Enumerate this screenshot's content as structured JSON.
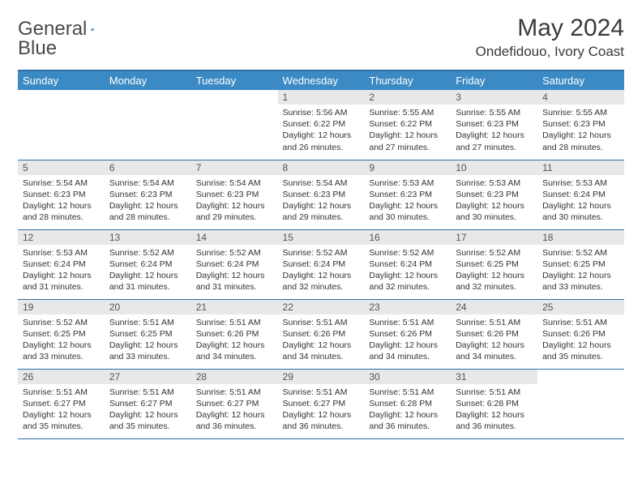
{
  "logo": {
    "text1": "General",
    "text2": "Blue",
    "icon_color": "#2f6fa8"
  },
  "title": "May 2024",
  "subtitle": "Ondefidouo, Ivory Coast",
  "colors": {
    "header_bg": "#3b8ac4",
    "header_text": "#ffffff",
    "rule": "#2f6fa8",
    "daybar_bg": "#e8e8e8",
    "body_text": "#333333"
  },
  "day_labels": [
    "Sunday",
    "Monday",
    "Tuesday",
    "Wednesday",
    "Thursday",
    "Friday",
    "Saturday"
  ],
  "weeks": [
    [
      null,
      null,
      null,
      {
        "n": "1",
        "sr": "5:56 AM",
        "ss": "6:22 PM",
        "dl": "12 hours and 26 minutes."
      },
      {
        "n": "2",
        "sr": "5:55 AM",
        "ss": "6:22 PM",
        "dl": "12 hours and 27 minutes."
      },
      {
        "n": "3",
        "sr": "5:55 AM",
        "ss": "6:23 PM",
        "dl": "12 hours and 27 minutes."
      },
      {
        "n": "4",
        "sr": "5:55 AM",
        "ss": "6:23 PM",
        "dl": "12 hours and 28 minutes."
      }
    ],
    [
      {
        "n": "5",
        "sr": "5:54 AM",
        "ss": "6:23 PM",
        "dl": "12 hours and 28 minutes."
      },
      {
        "n": "6",
        "sr": "5:54 AM",
        "ss": "6:23 PM",
        "dl": "12 hours and 28 minutes."
      },
      {
        "n": "7",
        "sr": "5:54 AM",
        "ss": "6:23 PM",
        "dl": "12 hours and 29 minutes."
      },
      {
        "n": "8",
        "sr": "5:54 AM",
        "ss": "6:23 PM",
        "dl": "12 hours and 29 minutes."
      },
      {
        "n": "9",
        "sr": "5:53 AM",
        "ss": "6:23 PM",
        "dl": "12 hours and 30 minutes."
      },
      {
        "n": "10",
        "sr": "5:53 AM",
        "ss": "6:23 PM",
        "dl": "12 hours and 30 minutes."
      },
      {
        "n": "11",
        "sr": "5:53 AM",
        "ss": "6:24 PM",
        "dl": "12 hours and 30 minutes."
      }
    ],
    [
      {
        "n": "12",
        "sr": "5:53 AM",
        "ss": "6:24 PM",
        "dl": "12 hours and 31 minutes."
      },
      {
        "n": "13",
        "sr": "5:52 AM",
        "ss": "6:24 PM",
        "dl": "12 hours and 31 minutes."
      },
      {
        "n": "14",
        "sr": "5:52 AM",
        "ss": "6:24 PM",
        "dl": "12 hours and 31 minutes."
      },
      {
        "n": "15",
        "sr": "5:52 AM",
        "ss": "6:24 PM",
        "dl": "12 hours and 32 minutes."
      },
      {
        "n": "16",
        "sr": "5:52 AM",
        "ss": "6:24 PM",
        "dl": "12 hours and 32 minutes."
      },
      {
        "n": "17",
        "sr": "5:52 AM",
        "ss": "6:25 PM",
        "dl": "12 hours and 32 minutes."
      },
      {
        "n": "18",
        "sr": "5:52 AM",
        "ss": "6:25 PM",
        "dl": "12 hours and 33 minutes."
      }
    ],
    [
      {
        "n": "19",
        "sr": "5:52 AM",
        "ss": "6:25 PM",
        "dl": "12 hours and 33 minutes."
      },
      {
        "n": "20",
        "sr": "5:51 AM",
        "ss": "6:25 PM",
        "dl": "12 hours and 33 minutes."
      },
      {
        "n": "21",
        "sr": "5:51 AM",
        "ss": "6:26 PM",
        "dl": "12 hours and 34 minutes."
      },
      {
        "n": "22",
        "sr": "5:51 AM",
        "ss": "6:26 PM",
        "dl": "12 hours and 34 minutes."
      },
      {
        "n": "23",
        "sr": "5:51 AM",
        "ss": "6:26 PM",
        "dl": "12 hours and 34 minutes."
      },
      {
        "n": "24",
        "sr": "5:51 AM",
        "ss": "6:26 PM",
        "dl": "12 hours and 34 minutes."
      },
      {
        "n": "25",
        "sr": "5:51 AM",
        "ss": "6:26 PM",
        "dl": "12 hours and 35 minutes."
      }
    ],
    [
      {
        "n": "26",
        "sr": "5:51 AM",
        "ss": "6:27 PM",
        "dl": "12 hours and 35 minutes."
      },
      {
        "n": "27",
        "sr": "5:51 AM",
        "ss": "6:27 PM",
        "dl": "12 hours and 35 minutes."
      },
      {
        "n": "28",
        "sr": "5:51 AM",
        "ss": "6:27 PM",
        "dl": "12 hours and 36 minutes."
      },
      {
        "n": "29",
        "sr": "5:51 AM",
        "ss": "6:27 PM",
        "dl": "12 hours and 36 minutes."
      },
      {
        "n": "30",
        "sr": "5:51 AM",
        "ss": "6:28 PM",
        "dl": "12 hours and 36 minutes."
      },
      {
        "n": "31",
        "sr": "5:51 AM",
        "ss": "6:28 PM",
        "dl": "12 hours and 36 minutes."
      },
      null
    ]
  ],
  "labels": {
    "sunrise": "Sunrise:",
    "sunset": "Sunset:",
    "daylight": "Daylight:"
  }
}
